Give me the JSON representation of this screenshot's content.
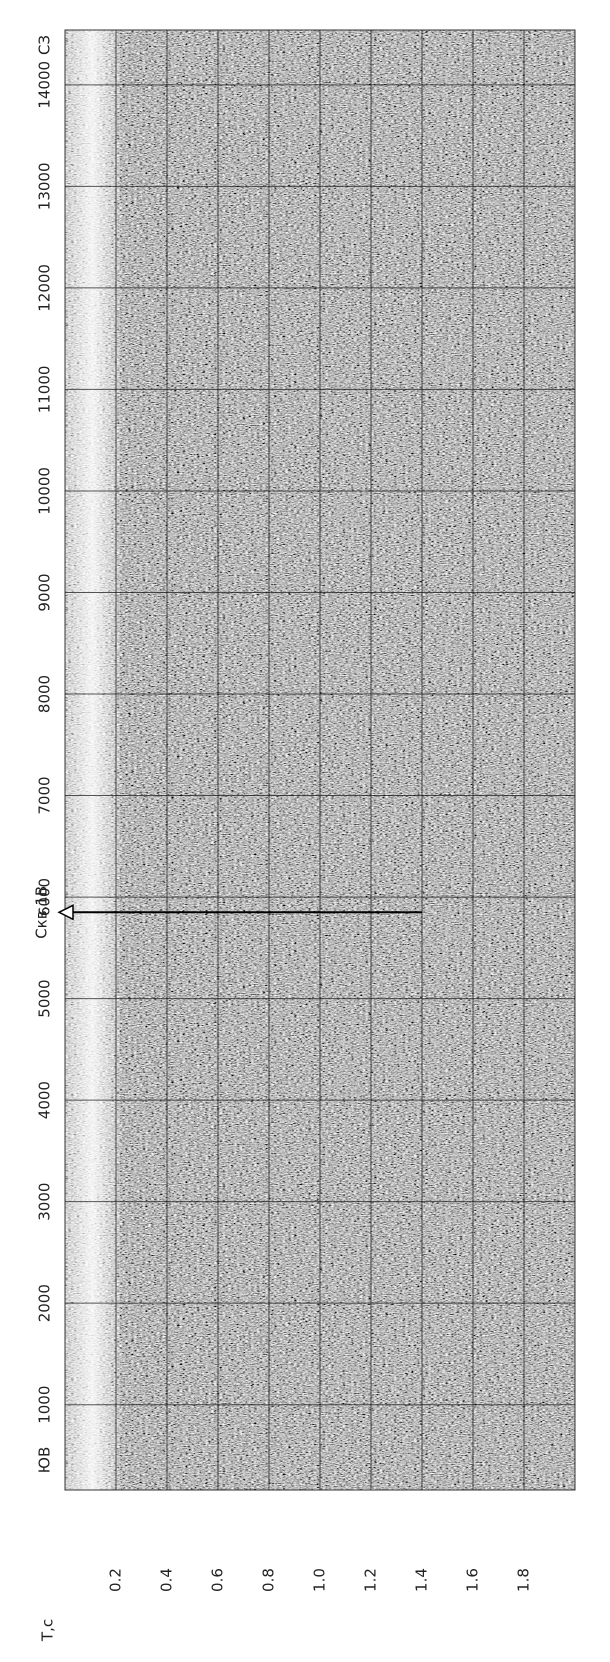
{
  "chart_data": {
    "type": "seismic",
    "ylabel": "T,c",
    "ylim": [
      0,
      2.0
    ],
    "yticks": [
      {
        "value": 0.2,
        "label": "0.2"
      },
      {
        "value": 0.4,
        "label": "0.4"
      },
      {
        "value": 0.6,
        "label": "0.6"
      },
      {
        "value": 0.8,
        "label": "0.8"
      },
      {
        "value": 1.0,
        "label": "1.0"
      },
      {
        "value": 1.2,
        "label": "1.2"
      },
      {
        "value": 1.4,
        "label": "1.4"
      },
      {
        "value": 1.6,
        "label": "1.6"
      },
      {
        "value": 1.8,
        "label": "1.8"
      }
    ],
    "xlim": [
      160,
      14540
    ],
    "xticks": [
      1000,
      2000,
      3000,
      4000,
      5000,
      6000,
      7000,
      8000,
      9000,
      10000,
      11000,
      12000,
      13000,
      14000
    ],
    "start_label": "ЮВ",
    "end_label": "СЗ",
    "well": {
      "label": "Скв.1В",
      "x": 5850,
      "depth": 1.4
    },
    "grid": true
  }
}
